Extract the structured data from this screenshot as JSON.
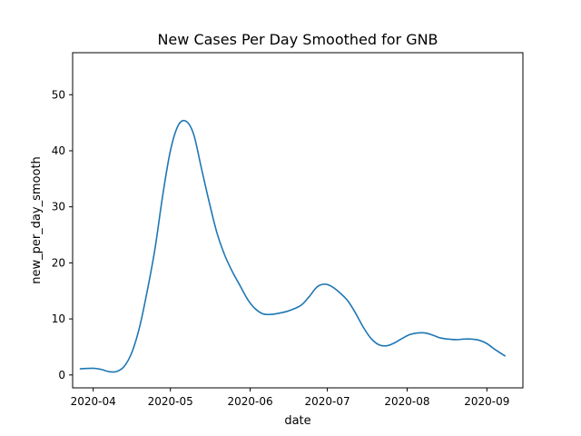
{
  "chart_data": {
    "type": "line",
    "title": "New Cases Per Day Smoothed for GNB",
    "xlabel": "date",
    "ylabel": "new_per_day_smooth",
    "x_scale": "date",
    "xlim": [
      "2020-03-24",
      "2020-09-15"
    ],
    "ylim": [
      -2.3,
      57.5
    ],
    "xticks": [
      "2020-04",
      "2020-05",
      "2020-06",
      "2020-07",
      "2020-08",
      "2020-09"
    ],
    "yticks": [
      0,
      10,
      20,
      30,
      40,
      50
    ],
    "grid": false,
    "legend": "none",
    "color": "#1f77b4",
    "series": [
      {
        "x": [
          "2020-03-27",
          "2020-04-01",
          "2020-04-04",
          "2020-04-07",
          "2020-04-10",
          "2020-04-13",
          "2020-04-16",
          "2020-04-19",
          "2020-04-22",
          "2020-04-25",
          "2020-04-28",
          "2020-05-01",
          "2020-05-04",
          "2020-05-07",
          "2020-05-10",
          "2020-05-13",
          "2020-05-16",
          "2020-05-19",
          "2020-05-22",
          "2020-05-25",
          "2020-05-28",
          "2020-05-31",
          "2020-06-03",
          "2020-06-06",
          "2020-06-09",
          "2020-06-12",
          "2020-06-15",
          "2020-06-18",
          "2020-06-21",
          "2020-06-24",
          "2020-06-27",
          "2020-06-30",
          "2020-07-03",
          "2020-07-06",
          "2020-07-09",
          "2020-07-12",
          "2020-07-15",
          "2020-07-18",
          "2020-07-21",
          "2020-07-24",
          "2020-07-27",
          "2020-07-30",
          "2020-08-02",
          "2020-08-05",
          "2020-08-08",
          "2020-08-11",
          "2020-08-14",
          "2020-08-17",
          "2020-08-20",
          "2020-08-23",
          "2020-08-26",
          "2020-08-29",
          "2020-09-01",
          "2020-09-04",
          "2020-09-08"
        ],
        "y": [
          1.1,
          1.2,
          1.0,
          0.6,
          0.6,
          1.5,
          4.0,
          8.5,
          15.0,
          22.5,
          32.0,
          40.0,
          44.5,
          45.3,
          43.0,
          37.0,
          31.0,
          25.5,
          21.5,
          18.5,
          16.0,
          13.5,
          11.8,
          10.9,
          10.8,
          11.0,
          11.3,
          11.8,
          12.5,
          14.0,
          15.7,
          16.2,
          15.7,
          14.6,
          13.2,
          11.0,
          8.5,
          6.5,
          5.4,
          5.2,
          5.7,
          6.5,
          7.2,
          7.5,
          7.5,
          7.1,
          6.6,
          6.4,
          6.3,
          6.4,
          6.4,
          6.2,
          5.6,
          4.6,
          3.4
        ]
      }
    ]
  }
}
